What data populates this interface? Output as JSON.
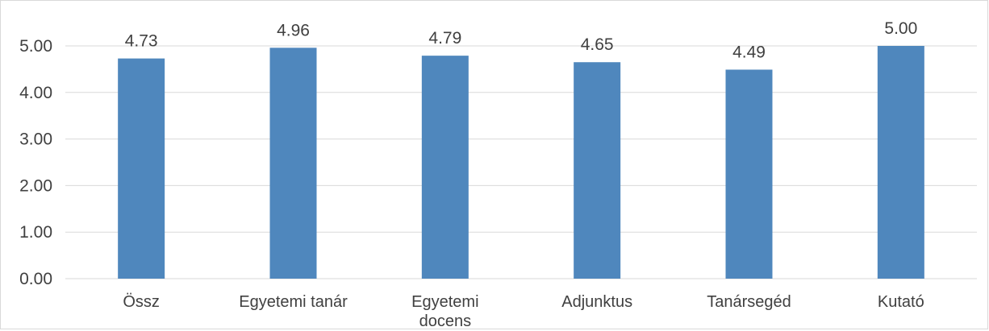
{
  "chart_data": {
    "type": "bar",
    "categories": [
      "Össz",
      "Egyetemi tanár",
      "Egyetemi docens",
      "Adjunktus",
      "Tanársegéd",
      "Kutató"
    ],
    "category_lines": [
      [
        "Össz"
      ],
      [
        "Egyetemi tanár"
      ],
      [
        "Egyetemi",
        "docens"
      ],
      [
        "Adjunktus"
      ],
      [
        "Tanársegéd"
      ],
      [
        "Kutató"
      ]
    ],
    "values": [
      4.73,
      4.96,
      4.79,
      4.65,
      4.49,
      5.0
    ],
    "data_labels": [
      "4.73",
      "4.96",
      "4.79",
      "4.65",
      "4.49",
      "5.00"
    ],
    "y_ticks": [
      0,
      1,
      2,
      3,
      4,
      5
    ],
    "y_tick_labels": [
      "0.00",
      "1.00",
      "2.00",
      "3.00",
      "4.00",
      "5.00"
    ],
    "ylim": [
      0,
      5
    ],
    "grid": true,
    "legend": "none",
    "title": "",
    "xlabel": "",
    "ylabel": "",
    "bar_color": "#4f87bd",
    "grid_color": "#d9d9d9",
    "text_color": "#404040"
  }
}
